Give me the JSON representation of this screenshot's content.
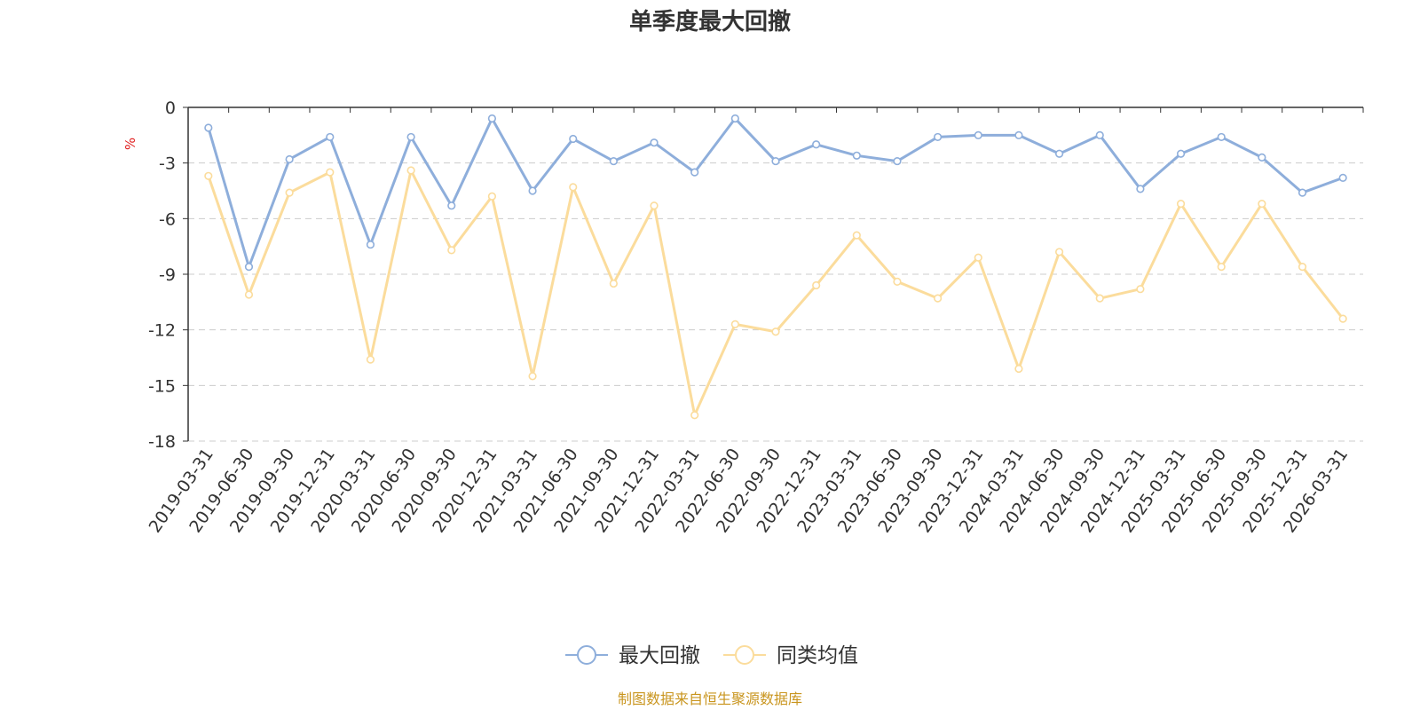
{
  "chart_data": {
    "type": "line",
    "title": "单季度最大回撤",
    "ylabel": "%",
    "xlabel": "",
    "ylim": [
      -18,
      0
    ],
    "yticks": [
      0,
      -3,
      -6,
      -9,
      -12,
      -15,
      -18
    ],
    "grid": true,
    "legend_position": "bottom-center",
    "categories": [
      "2019-03-31",
      "2019-06-30",
      "2019-09-30",
      "2019-12-31",
      "2020-03-31",
      "2020-06-30",
      "2020-09-30",
      "2020-12-31",
      "2021-03-31",
      "2021-06-30",
      "2021-09-30",
      "2021-12-31",
      "2022-03-31",
      "2022-06-30",
      "2022-09-30",
      "2022-12-31",
      "2023-03-31",
      "2023-06-30",
      "2023-09-30",
      "2023-12-31",
      "2024-03-31",
      "2024-06-30",
      "2024-09-30",
      "2024-12-31",
      "2025-03-31",
      "2025-06-30",
      "2025-09-30",
      "2025-12-31",
      "2026-03-31"
    ],
    "series": [
      {
        "name": "最大回撤",
        "color": "#8eaedb",
        "values": [
          -1.1,
          -8.6,
          -2.8,
          -1.6,
          -7.4,
          -1.6,
          -5.3,
          -0.6,
          -4.5,
          -1.7,
          -2.9,
          -1.9,
          -3.5,
          -0.6,
          -2.9,
          -2.0,
          -2.6,
          -2.9,
          -1.6,
          -1.5,
          -1.5,
          -2.5,
          -1.5,
          -4.4,
          -2.5,
          -1.6,
          -2.7,
          -4.6,
          -3.8
        ]
      },
      {
        "name": "同类均值",
        "color": "#fbdc9c",
        "values": [
          -3.7,
          -10.1,
          -4.6,
          -3.5,
          -13.6,
          -3.4,
          -7.7,
          -4.8,
          -14.5,
          -4.3,
          -9.5,
          -5.3,
          -16.6,
          -11.7,
          -12.1,
          -9.6,
          -6.9,
          -9.4,
          -10.3,
          -8.1,
          -14.1,
          -7.8,
          -10.3,
          -9.8,
          -5.2,
          -8.6,
          -5.2,
          -8.6,
          -11.4
        ]
      }
    ],
    "source_note": "制图数据来自恒生聚源数据库"
  }
}
